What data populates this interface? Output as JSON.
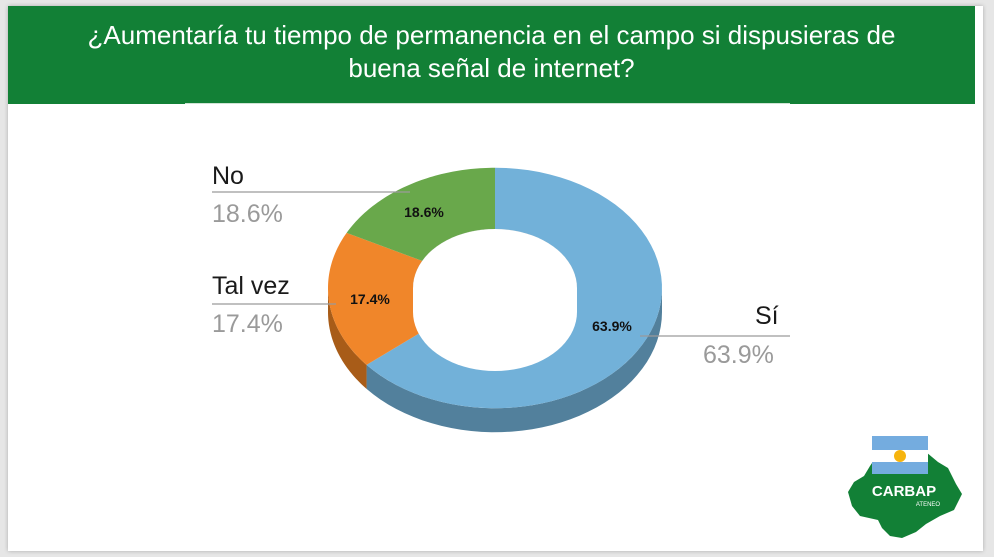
{
  "chart_data": {
    "type": "pie",
    "title": "¿Aumentaría tu tiempo de permanencia en el campo si dispusieras de buena señal de internet?",
    "categories": [
      "Sí",
      "No",
      "Tal vez"
    ],
    "values": [
      63.9,
      18.6,
      17.4
    ],
    "data_labels": [
      "63.9%",
      "18.6%",
      "17.4%"
    ],
    "colors": [
      "#72b1d9",
      "#f0862a",
      "#69a84b"
    ],
    "side_colors": [
      "#52809c",
      "#a85c18",
      "#4b7a35"
    ],
    "style": "3d-doughnut",
    "legend": "none"
  },
  "callouts": {
    "si": {
      "name": "Sí",
      "pct": "63.9%"
    },
    "no": {
      "name": "No",
      "pct": "18.6%"
    },
    "tal": {
      "name": "Tal vez",
      "pct": "17.4%"
    }
  },
  "logo": {
    "text": "CARBAP",
    "subtext": "ATENEO"
  },
  "colors": {
    "header": "#128036",
    "background": "#ffffff"
  }
}
